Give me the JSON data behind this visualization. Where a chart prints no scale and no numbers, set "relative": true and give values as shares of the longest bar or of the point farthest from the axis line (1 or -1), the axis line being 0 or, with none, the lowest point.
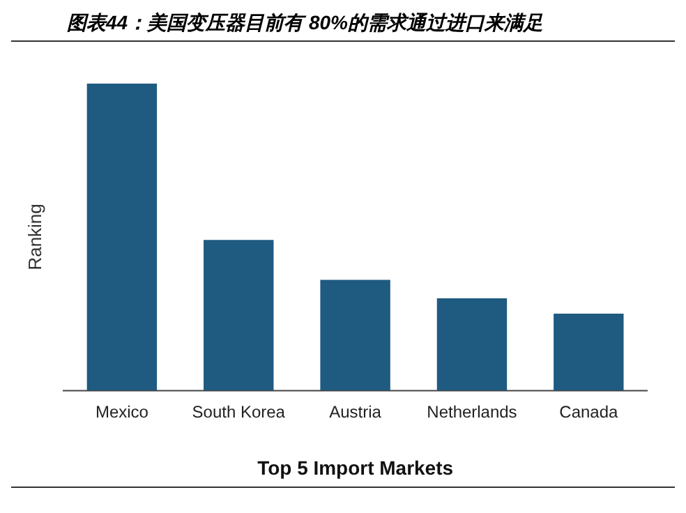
{
  "chart_data": {
    "type": "bar",
    "title": "图表44：美国变压器目前有 80%的需求通过进口来满足",
    "xlabel": "Top 5 Import Markets",
    "ylabel": "Ranking",
    "categories": [
      "Mexico",
      "South Korea",
      "Austria",
      "Netherlands",
      "Canada"
    ],
    "values": [
      1,
      0.49,
      0.36,
      0.3,
      0.25
    ],
    "color": "#1f5a80",
    "relative": true,
    "grid": false,
    "legend": false
  }
}
